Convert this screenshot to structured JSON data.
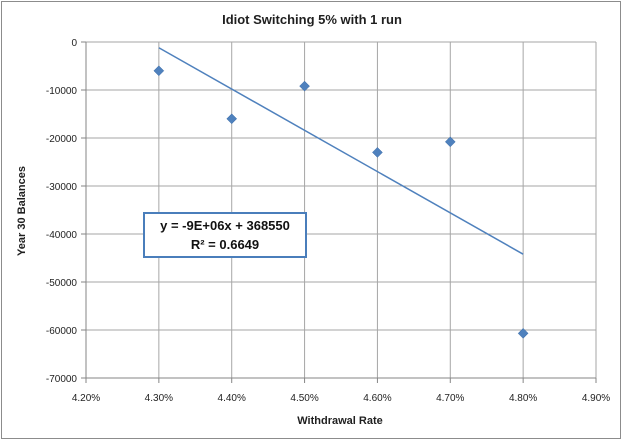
{
  "chart_data": {
    "type": "scatter",
    "title": "Idiot Switching 5% with 1 run",
    "xlabel": "Withdrawal Rate",
    "ylabel": "Year 30 Balances",
    "xlim": [
      0.042,
      0.049
    ],
    "ylim": [
      -70000,
      0
    ],
    "x_ticks": [
      "4.20%",
      "4.30%",
      "4.40%",
      "4.50%",
      "4.60%",
      "4.70%",
      "4.80%",
      "4.90%"
    ],
    "y_ticks": [
      "0",
      "-10000",
      "-20000",
      "-30000",
      "-40000",
      "-50000",
      "-60000",
      "-70000"
    ],
    "grid": true,
    "marker_color": "#4f81bd",
    "trendline_color": "#4f81bd",
    "series": [
      {
        "x": [
          0.043,
          0.044,
          0.045,
          0.046,
          0.047,
          0.048
        ],
        "y": [
          -6000,
          -16000,
          -9200,
          -23000,
          -20800,
          -60700
        ]
      }
    ],
    "trendline": {
      "type": "linear",
      "x_range": [
        0.043,
        0.048
      ],
      "y_range": [
        -1200,
        -44200
      ],
      "equation": "y = -9E+06x + 368550",
      "r_squared": "R² = 0.6649"
    }
  }
}
